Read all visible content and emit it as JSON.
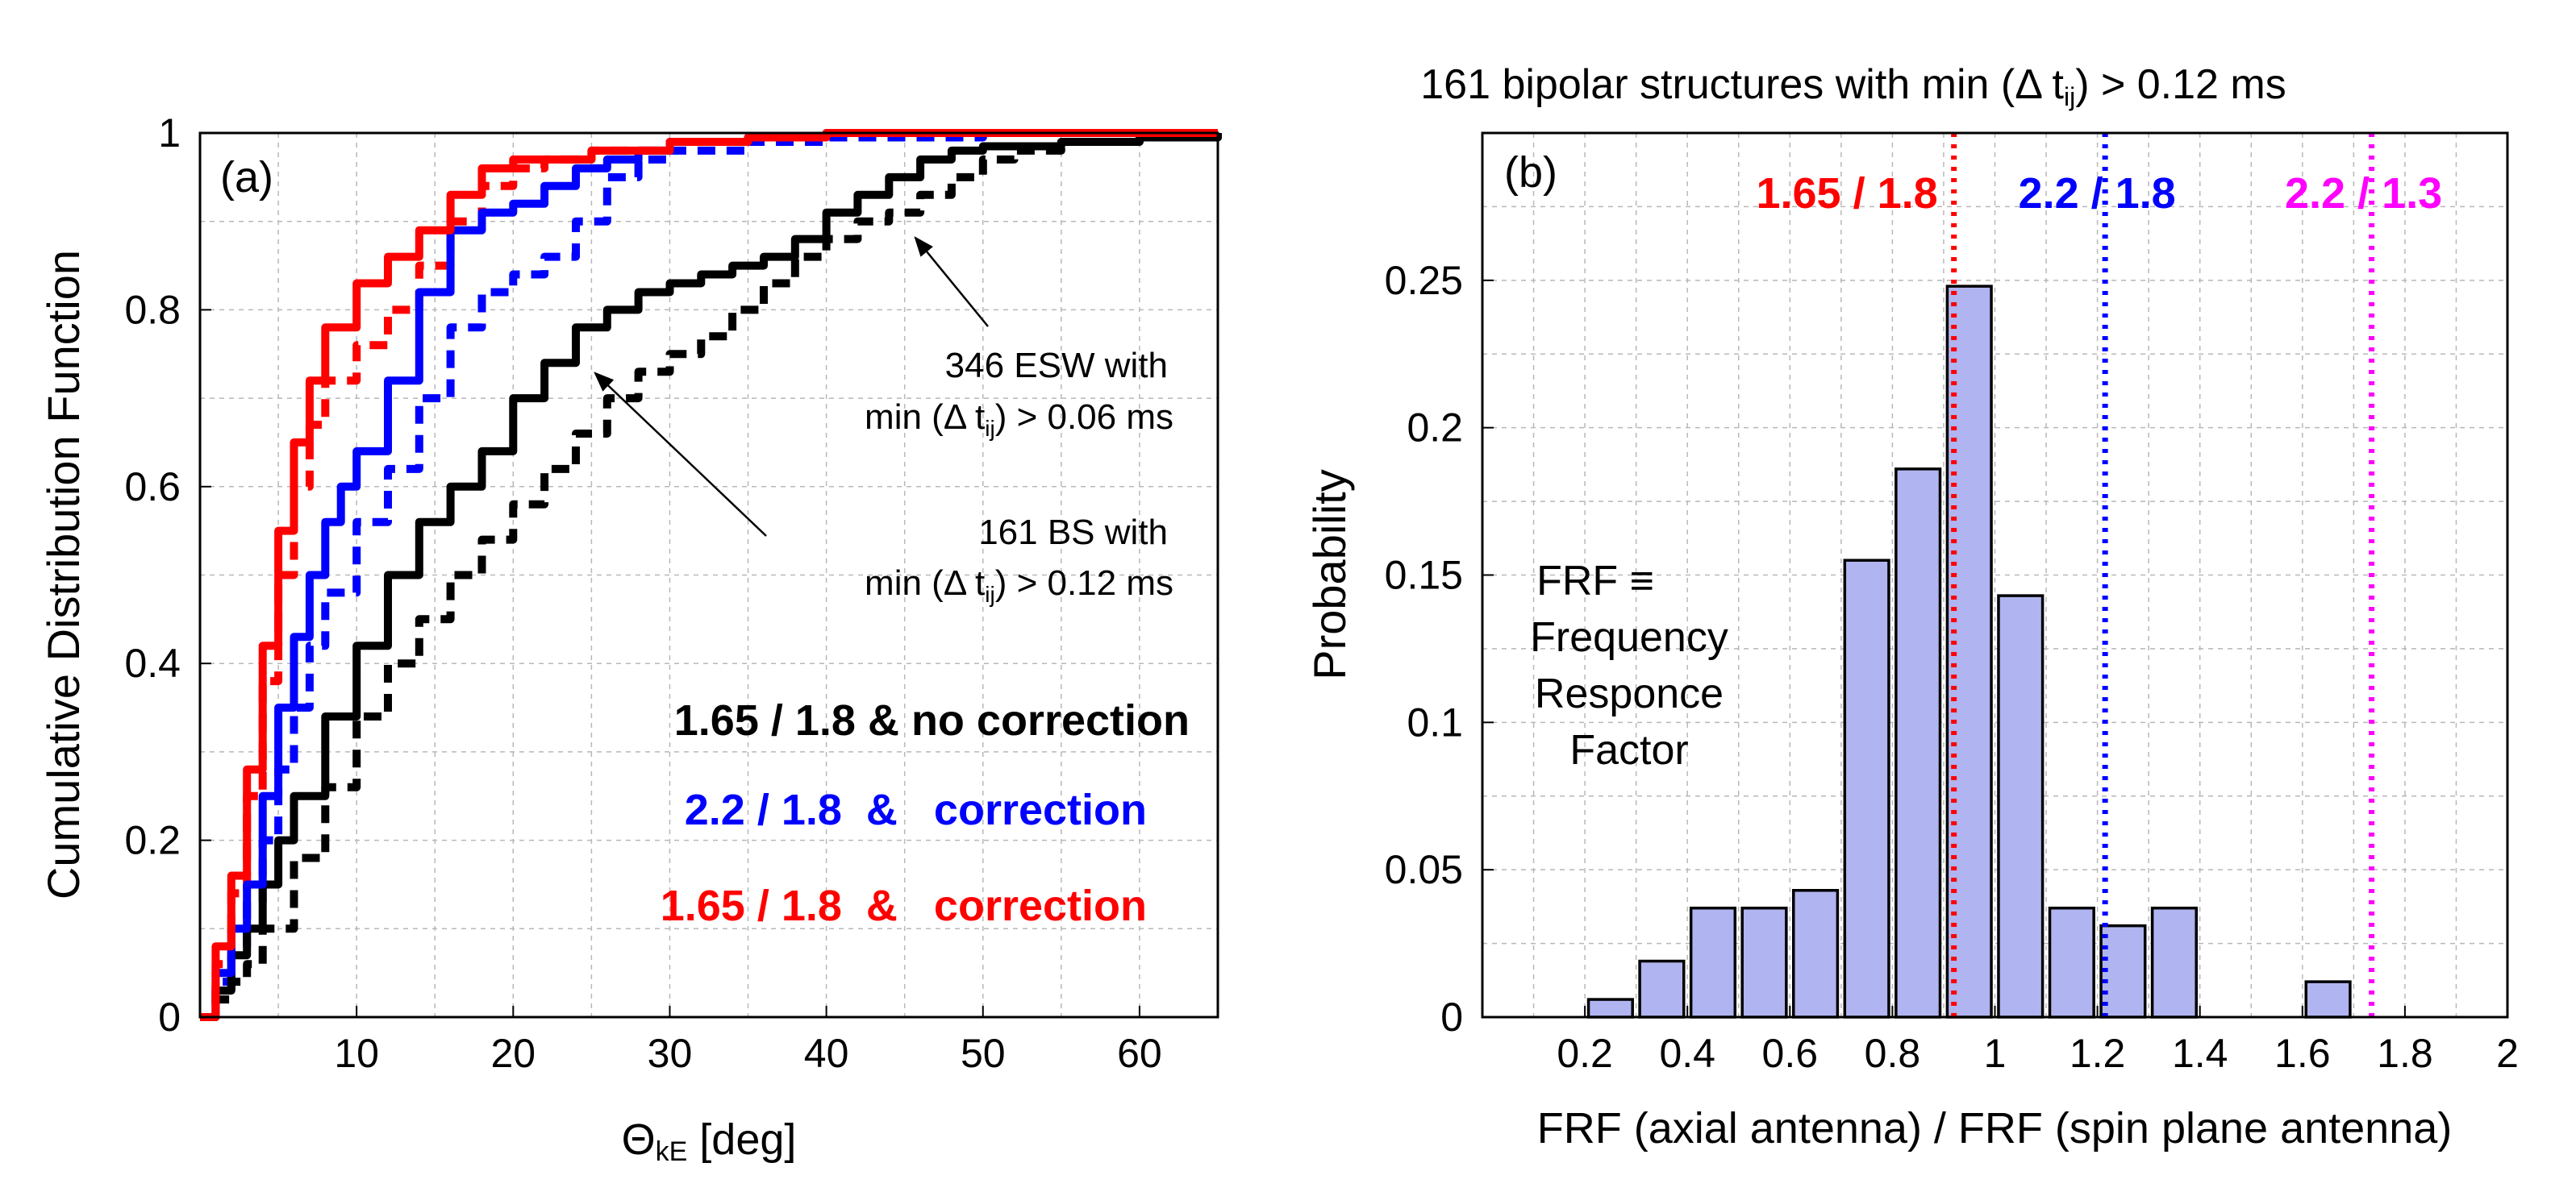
{
  "chart_data": [
    {
      "type": "line",
      "panel_label": "(a)",
      "title": "",
      "xlabel_symbol": "Θ",
      "xlabel_sub": "kE",
      "xlabel_rest": " [deg]",
      "ylabel": "Cumulative Distribution Function",
      "xlim": [
        0,
        65
      ],
      "ylim": [
        0,
        1
      ],
      "xticks": [
        10,
        20,
        30,
        40,
        50,
        60
      ],
      "yticks": [
        0,
        0.2,
        0.4,
        0.6,
        0.8,
        1
      ],
      "ytick_labels": [
        "0",
        "0.2",
        "0.4",
        "0.6",
        "0.8",
        "1"
      ],
      "grid": true,
      "series": [
        {
          "name": "346 ESW no correction",
          "color": "#000000",
          "dash": false,
          "x": [
            0,
            1,
            2,
            3,
            4,
            5,
            6,
            8,
            10,
            12,
            14,
            16,
            18,
            20,
            22,
            24,
            26,
            28,
            30,
            32,
            34,
            36,
            38,
            40,
            42,
            44,
            46,
            48,
            50,
            55,
            60,
            65
          ],
          "y": [
            0,
            0.03,
            0.07,
            0.1,
            0.15,
            0.2,
            0.25,
            0.34,
            0.42,
            0.5,
            0.56,
            0.6,
            0.64,
            0.7,
            0.74,
            0.78,
            0.8,
            0.82,
            0.83,
            0.84,
            0.85,
            0.86,
            0.88,
            0.91,
            0.93,
            0.95,
            0.97,
            0.98,
            0.985,
            0.99,
            0.995,
            1.0
          ]
        },
        {
          "name": "161 BS no correction",
          "color": "#000000",
          "dash": true,
          "x": [
            0,
            1,
            2,
            3,
            4,
            6,
            8,
            10,
            12,
            14,
            16,
            18,
            20,
            22,
            24,
            26,
            28,
            30,
            32,
            34,
            36,
            38,
            40,
            42,
            44,
            46,
            48,
            50,
            52,
            55,
            60,
            65
          ],
          "y": [
            0,
            0.02,
            0.04,
            0.06,
            0.1,
            0.18,
            0.26,
            0.34,
            0.4,
            0.45,
            0.5,
            0.54,
            0.58,
            0.62,
            0.66,
            0.7,
            0.73,
            0.75,
            0.77,
            0.8,
            0.83,
            0.86,
            0.88,
            0.9,
            0.91,
            0.93,
            0.95,
            0.97,
            0.98,
            0.99,
            0.995,
            1.0
          ]
        },
        {
          "name": "346 ESW correction 2.2/1.8",
          "color": "#0000ff",
          "dash": false,
          "x": [
            0,
            1,
            2,
            3,
            4,
            5,
            6,
            7,
            8,
            9,
            10,
            12,
            14,
            16,
            18,
            20,
            22,
            24,
            26,
            28,
            30,
            35,
            40,
            50,
            65
          ],
          "y": [
            0,
            0.05,
            0.1,
            0.15,
            0.25,
            0.35,
            0.43,
            0.5,
            0.56,
            0.6,
            0.64,
            0.72,
            0.82,
            0.89,
            0.91,
            0.92,
            0.94,
            0.96,
            0.97,
            0.98,
            0.99,
            0.995,
            1.0,
            1.0,
            1.0
          ]
        },
        {
          "name": "161 BS correction 2.2/1.8",
          "color": "#0000ff",
          "dash": true,
          "x": [
            0,
            1,
            2,
            3,
            4,
            5,
            6,
            7,
            8,
            10,
            12,
            14,
            16,
            18,
            20,
            22,
            24,
            26,
            28,
            30,
            35,
            40,
            50,
            65
          ],
          "y": [
            0,
            0.04,
            0.08,
            0.13,
            0.2,
            0.28,
            0.35,
            0.42,
            0.48,
            0.56,
            0.62,
            0.7,
            0.78,
            0.82,
            0.84,
            0.86,
            0.9,
            0.95,
            0.97,
            0.98,
            0.99,
            0.995,
            1.0,
            1.0
          ]
        },
        {
          "name": "346 ESW correction 1.65/1.8",
          "color": "#ff0000",
          "dash": false,
          "x": [
            0,
            1,
            2,
            3,
            4,
            5,
            6,
            7,
            8,
            10,
            12,
            14,
            16,
            18,
            20,
            22,
            25,
            30,
            35,
            40,
            50,
            65
          ],
          "y": [
            0,
            0.08,
            0.16,
            0.28,
            0.42,
            0.55,
            0.65,
            0.72,
            0.78,
            0.83,
            0.86,
            0.89,
            0.93,
            0.96,
            0.97,
            0.97,
            0.98,
            0.99,
            0.995,
            1.0,
            1.0,
            1.0
          ]
        },
        {
          "name": "161 BS correction 1.65/1.8",
          "color": "#ff0000",
          "dash": true,
          "x": [
            0,
            1,
            2,
            3,
            4,
            5,
            6,
            7,
            8,
            10,
            12,
            14,
            16,
            18,
            20,
            22,
            25,
            30,
            35,
            40,
            50,
            65
          ],
          "y": [
            0,
            0.06,
            0.14,
            0.25,
            0.38,
            0.5,
            0.6,
            0.67,
            0.72,
            0.76,
            0.8,
            0.85,
            0.9,
            0.94,
            0.96,
            0.97,
            0.98,
            0.99,
            0.995,
            1.0,
            1.0,
            1.0
          ]
        }
      ],
      "annotations": [
        {
          "line1": "346 ESW with",
          "line2_pre": "min (Δ t",
          "line2_sub": "ij",
          "line2_post": ") > 0.06 ms",
          "arrow_to": [
            45.5,
            0.91
          ]
        },
        {
          "line1": "161 BS with",
          "line2_pre": "min (Δ t",
          "line2_sub": "ij",
          "line2_post": ") > 0.12 ms",
          "arrow_to": [
            25,
            0.75
          ]
        }
      ],
      "legend": [
        {
          "text": "1.65 / 1.8 & no correction",
          "color": "#000000"
        },
        {
          "text": "2.2 / 1.8  &   correction",
          "color": "#0000ff"
        },
        {
          "text": "1.65 / 1.8  &   correction",
          "color": "#ff0000"
        }
      ]
    },
    {
      "type": "bar",
      "panel_label": "(b)",
      "title_pre": "161 bipolar structures with min (Δ t",
      "title_sub": "ij",
      "title_post": ") > 0.12 ms",
      "xlabel": "FRF (axial antenna) / FRF (spin plane antenna)",
      "ylabel": "Probability",
      "xlim": [
        0,
        2
      ],
      "ylim": [
        0,
        0.3
      ],
      "xticks": [
        0.2,
        0.4,
        0.6,
        0.8,
        1,
        1.2,
        1.4,
        1.6,
        1.8,
        2
      ],
      "xtick_labels": [
        "0.2",
        "0.4",
        "0.6",
        "0.8",
        "1",
        "1.2",
        "1.4",
        "1.6",
        "1.8",
        "2"
      ],
      "yticks": [
        0,
        0.05,
        0.1,
        0.15,
        0.2,
        0.25
      ],
      "ytick_labels": [
        "0",
        "0.05",
        "0.1",
        "0.15",
        "0.2",
        "0.25"
      ],
      "grid": true,
      "bar_color": "#b0b4f0",
      "bin_width": 0.1,
      "bin_centers": [
        0.25,
        0.35,
        0.45,
        0.55,
        0.65,
        0.75,
        0.85,
        0.95,
        1.05,
        1.15,
        1.25,
        1.35,
        1.65
      ],
      "values": [
        0.006,
        0.019,
        0.037,
        0.037,
        0.043,
        0.155,
        0.186,
        0.248,
        0.143,
        0.037,
        0.031,
        0.037,
        0.012
      ],
      "vlines": [
        {
          "x": 0.92,
          "label": "1.65 / 1.8",
          "color": "#ff0000"
        },
        {
          "x": 1.215,
          "label": "2.2 / 1.8",
          "color": "#0000ff"
        },
        {
          "x": 1.735,
          "label": "2.2 / 1.3",
          "color": "#ff00ff"
        }
      ],
      "annotation": [
        "FRF ≡",
        "Frequency",
        "Responce",
        "Factor"
      ]
    }
  ]
}
